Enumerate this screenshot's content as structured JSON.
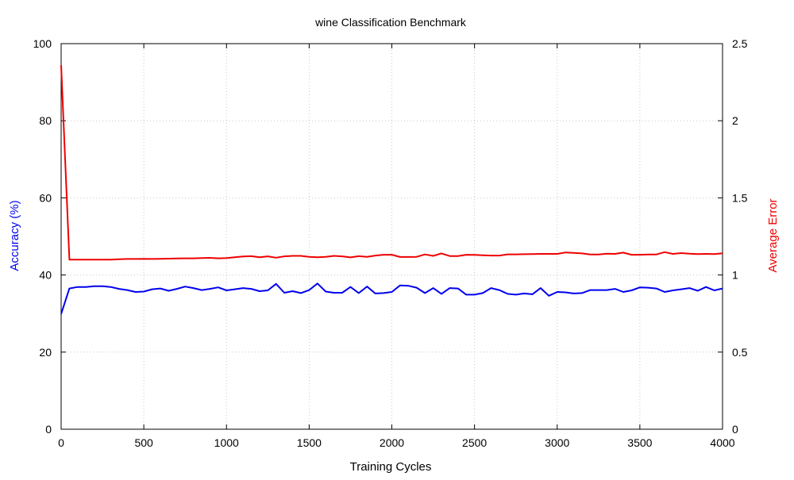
{
  "chart_data": {
    "type": "line",
    "title": "wine Classification Benchmark",
    "xlabel": "Training Cycles",
    "ylabel_left": "Accuracy (%)",
    "ylabel_right": "Average Error",
    "xlim": [
      0,
      4000
    ],
    "ylim_left": [
      0,
      100
    ],
    "ylim_right": [
      0,
      2.5
    ],
    "xticks": [
      0,
      500,
      1000,
      1500,
      2000,
      2500,
      3000,
      3500,
      4000
    ],
    "yticks_left": [
      0,
      20,
      40,
      60,
      80,
      100
    ],
    "yticks_right": [
      "0",
      "0.5",
      "1",
      "1.5",
      "2",
      "2.5"
    ],
    "yticks_right_values": [
      0,
      0.5,
      1,
      1.5,
      2,
      2.5
    ],
    "grid": true,
    "colors": {
      "accuracy": "#0000ee",
      "error": "#ee0000",
      "grid": "#c8c8c8"
    },
    "x": [
      0,
      50,
      100,
      150,
      200,
      250,
      300,
      350,
      400,
      450,
      500,
      550,
      600,
      650,
      700,
      750,
      800,
      850,
      900,
      950,
      1000,
      1050,
      1100,
      1150,
      1200,
      1250,
      1300,
      1350,
      1400,
      1450,
      1500,
      1550,
      1600,
      1650,
      1700,
      1750,
      1800,
      1850,
      1900,
      1950,
      2000,
      2050,
      2100,
      2150,
      2200,
      2250,
      2300,
      2350,
      2400,
      2450,
      2500,
      2550,
      2600,
      2650,
      2700,
      2750,
      2800,
      2850,
      2900,
      2950,
      3000,
      3050,
      3100,
      3150,
      3200,
      3250,
      3300,
      3350,
      3400,
      3450,
      3500,
      3550,
      3600,
      3650,
      3700,
      3750,
      3800,
      3850,
      3900,
      3950,
      4000
    ],
    "series": [
      {
        "axis": "left",
        "values": [
          29.9,
          36.5,
          36.9,
          36.9,
          37.1,
          37.1,
          36.9,
          36.4,
          36.1,
          35.6,
          35.7,
          36.3,
          36.5,
          35.9,
          36.4,
          37.0,
          36.6,
          36.1,
          36.4,
          36.8,
          36.0,
          36.3,
          36.6,
          36.4,
          35.8,
          36.0,
          37.7,
          35.4,
          35.8,
          35.3,
          36.1,
          37.8,
          35.7,
          35.4,
          35.4,
          36.9,
          35.3,
          37.0,
          35.2,
          35.3,
          35.6,
          37.3,
          37.2,
          36.7,
          35.3,
          36.6,
          35.1,
          36.6,
          36.5,
          34.9,
          34.9,
          35.3,
          36.6,
          36.1,
          35.1,
          34.9,
          35.2,
          35.0,
          36.6,
          34.6,
          35.6,
          35.5,
          35.2,
          35.3,
          36.1,
          36.1,
          36.1,
          36.4,
          35.6,
          36.0,
          36.8,
          36.7,
          36.5,
          35.6,
          36.0,
          36.3,
          36.6,
          35.9,
          36.9,
          36.0,
          36.5
        ]
      },
      {
        "axis": "right",
        "values": [
          2.36,
          1.1,
          1.1,
          1.1,
          1.1,
          1.1,
          1.1,
          1.102,
          1.104,
          1.104,
          1.105,
          1.104,
          1.105,
          1.106,
          1.107,
          1.108,
          1.108,
          1.11,
          1.111,
          1.108,
          1.11,
          1.115,
          1.12,
          1.122,
          1.115,
          1.121,
          1.112,
          1.121,
          1.124,
          1.124,
          1.118,
          1.115,
          1.118,
          1.124,
          1.121,
          1.114,
          1.122,
          1.118,
          1.126,
          1.131,
          1.131,
          1.117,
          1.117,
          1.118,
          1.133,
          1.124,
          1.14,
          1.123,
          1.123,
          1.131,
          1.13,
          1.128,
          1.126,
          1.126,
          1.134,
          1.134,
          1.135,
          1.136,
          1.137,
          1.137,
          1.137,
          1.146,
          1.143,
          1.14,
          1.133,
          1.133,
          1.138,
          1.137,
          1.145,
          1.131,
          1.131,
          1.133,
          1.133,
          1.148,
          1.137,
          1.142,
          1.138,
          1.136,
          1.137,
          1.136,
          1.141
        ]
      }
    ]
  }
}
